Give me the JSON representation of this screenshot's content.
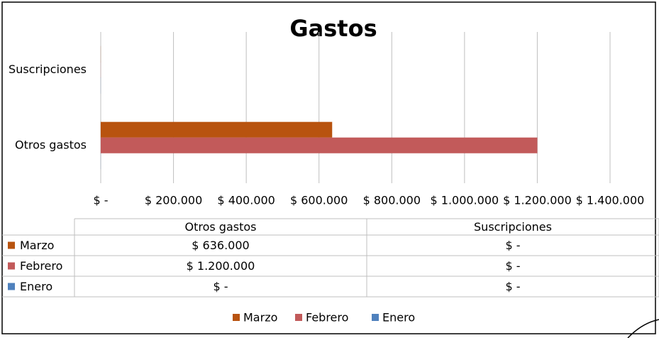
{
  "chart_data": {
    "type": "bar",
    "orientation": "horizontal",
    "title": "Gastos",
    "categories": [
      "Otros gastos",
      "Suscripciones"
    ],
    "series": [
      {
        "name": "Marzo",
        "color": "#b8530f",
        "values": [
          636000,
          0
        ],
        "value_labels": [
          "$ 636.000",
          "$ -"
        ]
      },
      {
        "name": "Febrero",
        "color": "#c25a5a",
        "values": [
          1200000,
          0
        ],
        "value_labels": [
          "$ 1.200.000",
          "$ -"
        ]
      },
      {
        "name": "Enero",
        "color": "#4f81bd",
        "values": [
          0,
          0
        ],
        "value_labels": [
          "$ -",
          "$ -"
        ]
      }
    ],
    "xlim": [
      0,
      1400000
    ],
    "xticks": [
      {
        "value": 0,
        "label": "$ -"
      },
      {
        "value": 200000,
        "label": "$ 200.000"
      },
      {
        "value": 400000,
        "label": "$ 400.000"
      },
      {
        "value": 600000,
        "label": "$ 600.000"
      },
      {
        "value": 800000,
        "label": "$ 800.000"
      },
      {
        "value": 1000000,
        "label": "$ 1.000.000"
      },
      {
        "value": 1200000,
        "label": "$ 1.200.000"
      },
      {
        "value": 1400000,
        "label": "$ 1.400.000"
      }
    ],
    "grid": true,
    "legend": "bottom"
  }
}
